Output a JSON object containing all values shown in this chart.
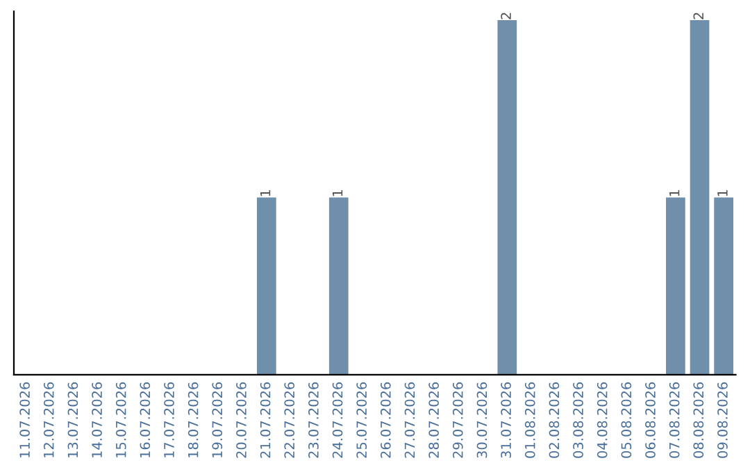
{
  "chart_data": {
    "type": "bar",
    "categories": [
      "11.07.2026",
      "12.07.2026",
      "13.07.2026",
      "14.07.2026",
      "15.07.2026",
      "16.07.2026",
      "17.07.2026",
      "18.07.2026",
      "19.07.2026",
      "20.07.2026",
      "21.07.2026",
      "22.07.2026",
      "23.07.2026",
      "24.07.2026",
      "25.07.2026",
      "26.07.2026",
      "27.07.2026",
      "28.07.2026",
      "29.07.2026",
      "30.07.2026",
      "31.07.2026",
      "01.08.2026",
      "02.08.2026",
      "03.08.2026",
      "04.08.2026",
      "05.08.2026",
      "06.08.2026",
      "07.08.2026",
      "08.08.2026",
      "09.08.2026"
    ],
    "values": [
      0,
      0,
      0,
      0,
      0,
      0,
      0,
      0,
      0,
      0,
      1,
      0,
      0,
      1,
      0,
      0,
      0,
      0,
      0,
      0,
      2,
      0,
      0,
      0,
      0,
      0,
      0,
      1,
      2,
      1
    ],
    "value_labels": [
      null,
      null,
      null,
      null,
      null,
      null,
      null,
      null,
      null,
      null,
      "1",
      null,
      null,
      "1",
      null,
      null,
      null,
      null,
      null,
      null,
      "2",
      null,
      null,
      null,
      null,
      null,
      null,
      "1",
      "2",
      "1"
    ],
    "color": "#6f8fab",
    "ylim": [
      0,
      2.05
    ],
    "tick_labels": "x",
    "grid": false,
    "legend": false
  }
}
